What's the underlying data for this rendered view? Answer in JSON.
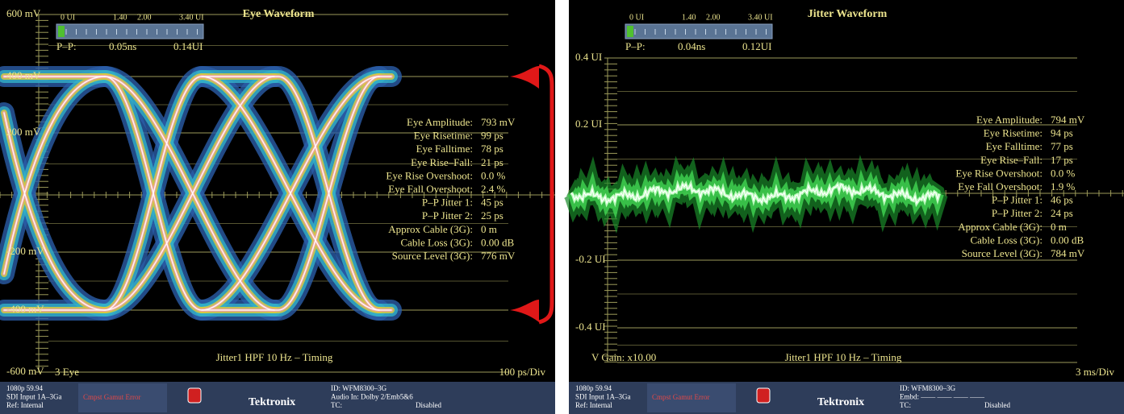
{
  "panels": [
    {
      "title": "Eye Waveform",
      "scale_labels": [
        "0 UI",
        "1.40",
        "2.00",
        "3.40 UI"
      ],
      "pp": [
        "P–P:",
        "0.05ns",
        "0.14UI"
      ],
      "axis_labels": [
        "600 mV",
        "400 mV",
        "200 mV",
        "-200 mV",
        "-400 mV",
        "-600 mV"
      ],
      "measurements": [
        {
          "label": "Eye Amplitude:",
          "value": "793 mV"
        },
        {
          "label": "Eye Risetime:",
          "value": "99 ps"
        },
        {
          "label": "Eye Falltime:",
          "value": "78 ps"
        },
        {
          "label": "Eye Rise–Fall:",
          "value": "21 ps"
        },
        {
          "label": "Eye Rise Overshoot:",
          "value": "0.0 %"
        },
        {
          "label": "Eye Fall Overshoot:",
          "value": "2.4 %"
        },
        {
          "label": "P–P Jitter 1:",
          "value": "45 ps"
        },
        {
          "label": "P–P Jitter 2:",
          "value": "25 ps"
        },
        {
          "label": "Approx Cable (3G):",
          "value": "0 m"
        },
        {
          "label": "Cable Loss (3G):",
          "value": "0.00 dB"
        },
        {
          "label": "Source Level (3G):",
          "value": "776 mV"
        }
      ],
      "footer_left": "3 Eye",
      "footer_center": "Jitter1 HPF 10 Hz – Timing",
      "footer_right": "100 ps/Div",
      "status": {
        "format_lines": [
          "1080p 59.94",
          "SDI Input 1A–3Ga",
          "Ref: Internal"
        ],
        "alarm": "Cmpst Gamut Error",
        "brand": "Tektronix",
        "info_lines": [
          "ID: WFM8300–3G",
          "Audio In: Dolby 2/Emb5&6",
          "TC:"
        ],
        "tc_state": "Disabled"
      }
    },
    {
      "title": "Jitter Waveform",
      "scale_labels": [
        "0 UI",
        "1.40",
        "2.00",
        "3.40 UI"
      ],
      "pp": [
        "P–P:",
        "0.04ns",
        "0.12UI"
      ],
      "axis_labels": [
        "0.4 UI",
        "0.2 UI",
        "-0.2 UI",
        "-0.4 UI"
      ],
      "measurements": [
        {
          "label": "Eye Amplitude:",
          "value": "794 mV"
        },
        {
          "label": "Eye Risetime:",
          "value": "94 ps"
        },
        {
          "label": "Eye Falltime:",
          "value": "77 ps"
        },
        {
          "label": "Eye Rise–Fall:",
          "value": "17 ps"
        },
        {
          "label": "Eye Rise Overshoot:",
          "value": "0.0 %"
        },
        {
          "label": "Eye Fall Overshoot:",
          "value": "1.9 %"
        },
        {
          "label": "P–P Jitter 1:",
          "value": "46 ps"
        },
        {
          "label": "P–P Jitter 2:",
          "value": "24 ps"
        },
        {
          "label": "Approx Cable (3G):",
          "value": "0 m"
        },
        {
          "label": "Cable Loss (3G):",
          "value": "0.00 dB"
        },
        {
          "label": "Source Level (3G):",
          "value": "784 mV"
        }
      ],
      "footer_left": "V Gain: x10.00",
      "footer_center": "Jitter1 HPF 10 Hz – Timing",
      "footer_right": "3 ms/Div",
      "status": {
        "format_lines": [
          "1080p 59.94",
          "SDI Input 1A–3Ga",
          "Ref: Internal"
        ],
        "alarm": "Cmpst Gamut Error",
        "brand": "Tektronix",
        "info_lines": [
          "ID: WFM8300–3G",
          "Embd: —— —— —— ——",
          "TC:"
        ],
        "tc_state": "Disabled"
      }
    }
  ]
}
